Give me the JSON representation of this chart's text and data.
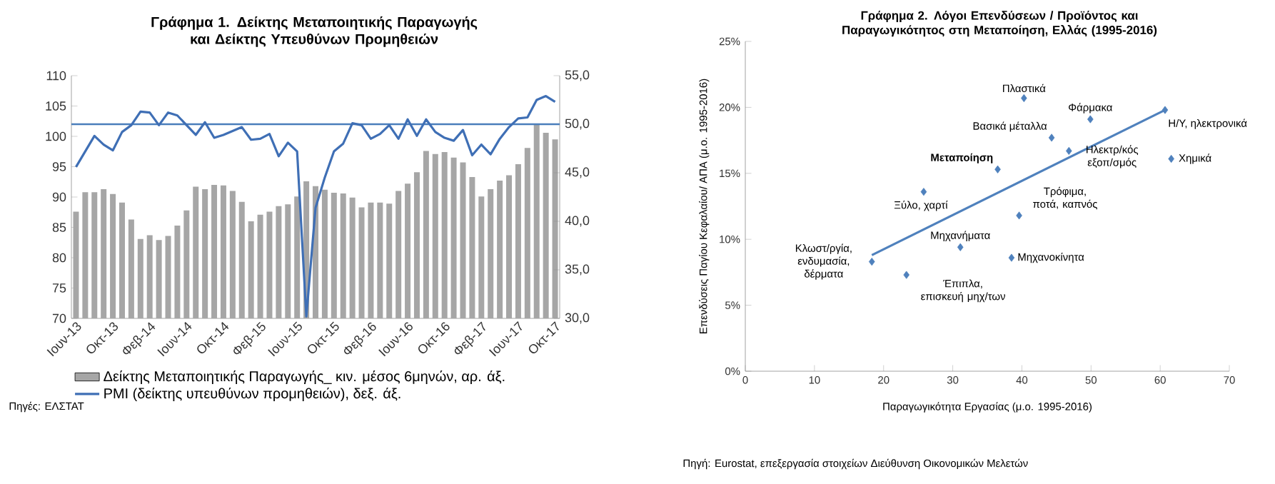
{
  "chart_data": [
    {
      "type": "bar",
      "title": "Γράφημα 1. Δείκτης Μεταποιητικής Παραγωγής και Δείκτης Υπευθύνων Προμηθειών",
      "categories": [
        "Ιουν-13",
        null,
        null,
        null,
        "Οκτ-13",
        null,
        null,
        null,
        "Φεβ-14",
        null,
        null,
        null,
        "Ιουν-14",
        null,
        null,
        null,
        "Οκτ-14",
        null,
        null,
        null,
        "Φεβ-15",
        null,
        null,
        null,
        "Ιουν-15",
        null,
        null,
        null,
        "Οκτ-15",
        null,
        null,
        null,
        "Φεβ-16",
        null,
        null,
        null,
        "Ιουν-16",
        null,
        null,
        null,
        "Οκτ-16",
        null,
        null,
        null,
        "Φεβ-17",
        null,
        null,
        null,
        "Ιουν-17",
        null,
        null,
        null,
        "Οκτ-17"
      ],
      "series": [
        {
          "name": "Δείκτης Μεταποιητικής Παραγωγής_ κιν. μέσος 6μηνών, αρ.  άξ.",
          "type": "bar",
          "color": "#a6a6a6",
          "values": [
            87.6,
            90.8,
            90.8,
            91.3,
            90.5,
            89.1,
            86.3,
            83.1,
            83.7,
            82.9,
            83.6,
            85.3,
            87.8,
            91.7,
            91.3,
            92.0,
            91.9,
            91.0,
            89.2,
            86.0,
            87.1,
            87.6,
            88.5,
            88.8,
            90.1,
            92.6,
            91.8,
            91.2,
            90.7,
            90.6,
            89.9,
            88.3,
            89.1,
            89.1,
            88.9,
            91.0,
            92.2,
            94.1,
            97.6,
            97.1,
            97.4,
            96.5,
            95.7,
            93.3,
            90.1,
            91.3,
            92.7,
            93.6,
            95.4,
            98.1,
            101.9,
            100.6,
            99.5
          ]
        },
        {
          "name": "PMI (δείκτης υπευθύνων προμηθειών), δεξ. άξ.",
          "type": "line",
          "axis": "y2",
          "color": "#3f6fb5",
          "values": [
            45.6,
            47.2,
            48.8,
            47.9,
            47.3,
            49.2,
            49.9,
            51.3,
            51.2,
            49.9,
            51.2,
            50.9,
            49.9,
            48.9,
            50.2,
            48.6,
            48.9,
            49.3,
            49.7,
            48.4,
            48.5,
            49.0,
            46.7,
            48.1,
            47.2,
            30.2,
            41.4,
            44.5,
            47.2,
            48.0,
            50.1,
            49.9,
            48.5,
            49.0,
            49.9,
            48.5,
            50.5,
            48.8,
            50.5,
            49.2,
            48.6,
            48.3,
            49.4,
            46.8,
            47.9,
            46.9,
            48.5,
            49.7,
            50.6,
            50.7,
            52.5,
            52.9,
            52.3
          ]
        }
      ],
      "ylim": [
        70,
        110
      ],
      "yticks": [
        70,
        75,
        80,
        85,
        90,
        95,
        100,
        105,
        110
      ],
      "y2lim": [
        30,
        55
      ],
      "y2ticks": [
        {
          "value": 30,
          "label": "30,0"
        },
        {
          "value": 35,
          "label": "35,0"
        },
        {
          "value": 40,
          "label": "40,0"
        },
        {
          "value": 45,
          "label": "45,0"
        },
        {
          "value": 50,
          "label": "50,0"
        },
        {
          "value": 55,
          "label": "55,0"
        }
      ],
      "ref_lines": [
        {
          "axis": "y2",
          "value": 50,
          "color": "#4a7ebb"
        }
      ],
      "legend": "bottom",
      "annotations": [
        "Πηγές: ΕΛΣΤΑΤ"
      ]
    },
    {
      "type": "scatter",
      "title": "Γράφημα 2. Λόγοι Επενδύσεων  / Προϊόντος και Παραγωγικότητος στη Μεταποίηση, Ελλάς (1995-2016)",
      "xlabel": "Παραγωγικότητα Εργασίας (μ.ο. 1995-2016)",
      "ylabel": "Επενδύσεις Παγίου Κεφαλαίου/ ΑΠΑ (μ.ο. 1995-2016)",
      "marker": "diamond",
      "series": [
        {
          "color": "#4f81bd",
          "x": [
            40.3,
            49.9,
            60.7,
            44.3,
            46.8,
            61.6,
            36.5,
            25.8,
            39.6,
            31.1,
            38.5,
            18.3,
            23.3
          ],
          "values": [
            20.7,
            19.1,
            19.8,
            17.7,
            16.7,
            16.1,
            15.3,
            13.6,
            11.8,
            9.4,
            8.6,
            8.3,
            7.3
          ]
        },
        {
          "type": "line",
          "marker": "none",
          "color": "#4f81bd",
          "x": [
            18.3,
            60.7
          ],
          "values": [
            8.8,
            19.8
          ]
        }
      ],
      "xlim": [
        0,
        70
      ],
      "xticks": [
        0,
        10,
        20,
        30,
        40,
        50,
        60,
        70
      ],
      "ylim": [
        0,
        25
      ],
      "yticks": [
        {
          "value": 0,
          "label": "0%"
        },
        {
          "value": 5,
          "label": "5%"
        },
        {
          "value": 10,
          "label": "10%"
        },
        {
          "value": 15,
          "label": "15%"
        },
        {
          "value": 20,
          "label": "20%"
        },
        {
          "value": 25,
          "label": "25%"
        }
      ],
      "annotations": [
        {
          "text": "Πλαστικά",
          "x": 40.3,
          "y": 20.7
        },
        {
          "text": "Φάρμακα",
          "x": 49.9,
          "y": 19.1
        },
        {
          "text": "Η/Υ, ηλεκτρονικά",
          "x": 60.7,
          "y": 19.8
        },
        {
          "text": "Βασικά μέταλλα",
          "x": 44.3,
          "y": 17.7
        },
        {
          "text": "Ηλεκτρ/κός εξοπ/σμός",
          "x": 46.8,
          "y": 16.7
        },
        {
          "text": "Χημικά",
          "x": 61.6,
          "y": 16.1
        },
        {
          "text": "**Μεταποίηση**",
          "x": 36.5,
          "y": 15.3
        },
        {
          "text": "Ξύλο, χαρτί",
          "x": 25.8,
          "y": 13.6
        },
        {
          "text": "Τρόφιμα, ποτά, καπνός",
          "x": 39.6,
          "y": 11.8
        },
        {
          "text": "Μηχανήματα",
          "x": 31.1,
          "y": 9.4
        },
        {
          "text": "Μηχανοκίνητα",
          "x": 38.5,
          "y": 8.6
        },
        {
          "text": "Κλωστ/ργία, ενδυμασία, δέρματα",
          "x": 18.3,
          "y": 8.3
        },
        {
          "text": "Έπιπλα, επισκευή μηχ/των",
          "x": 23.3,
          "y": 7.3
        },
        "Πηγή: Eurostat, επεξεργασία  στοιχείων Διεύθυνση Οικονομικών Μελετών"
      ]
    }
  ]
}
